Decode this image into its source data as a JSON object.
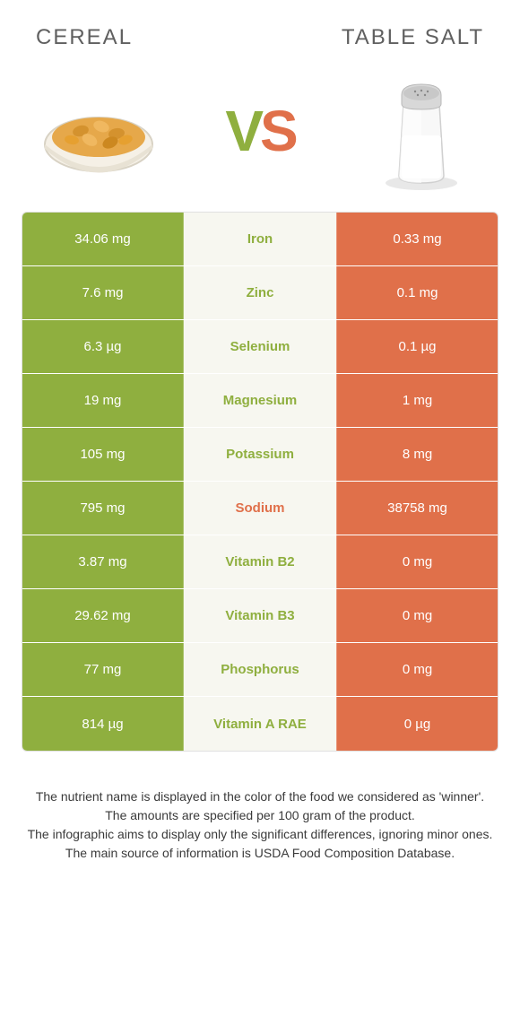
{
  "header": {
    "left_title": "CEREAL",
    "right_title": "TABLE SALT"
  },
  "vs": {
    "v": "V",
    "s": "S"
  },
  "colors": {
    "green": "#8faf3f",
    "orange": "#e0704a",
    "mid_bg": "#f7f7f0"
  },
  "rows": [
    {
      "left": "34.06 mg",
      "nutrient": "Iron",
      "right": "0.33 mg",
      "winner": "left"
    },
    {
      "left": "7.6 mg",
      "nutrient": "Zinc",
      "right": "0.1 mg",
      "winner": "left"
    },
    {
      "left": "6.3 µg",
      "nutrient": "Selenium",
      "right": "0.1 µg",
      "winner": "left"
    },
    {
      "left": "19 mg",
      "nutrient": "Magnesium",
      "right": "1 mg",
      "winner": "left"
    },
    {
      "left": "105 mg",
      "nutrient": "Potassium",
      "right": "8 mg",
      "winner": "left"
    },
    {
      "left": "795 mg",
      "nutrient": "Sodium",
      "right": "38758 mg",
      "winner": "right"
    },
    {
      "left": "3.87 mg",
      "nutrient": "Vitamin B2",
      "right": "0 mg",
      "winner": "left"
    },
    {
      "left": "29.62 mg",
      "nutrient": "Vitamin B3",
      "right": "0 mg",
      "winner": "left"
    },
    {
      "left": "77 mg",
      "nutrient": "Phosphorus",
      "right": "0 mg",
      "winner": "left"
    },
    {
      "left": "814 µg",
      "nutrient": "Vitamin A RAE",
      "right": "0 µg",
      "winner": "left"
    }
  ],
  "footer": {
    "line1": "The nutrient name is displayed in the color of the food we considered as 'winner'.",
    "line2": "The amounts are specified per 100 gram of the product.",
    "line3": "The infographic aims to display only the significant differences, ignoring minor ones.",
    "line4": "The main source of information is USDA Food Composition Database."
  }
}
